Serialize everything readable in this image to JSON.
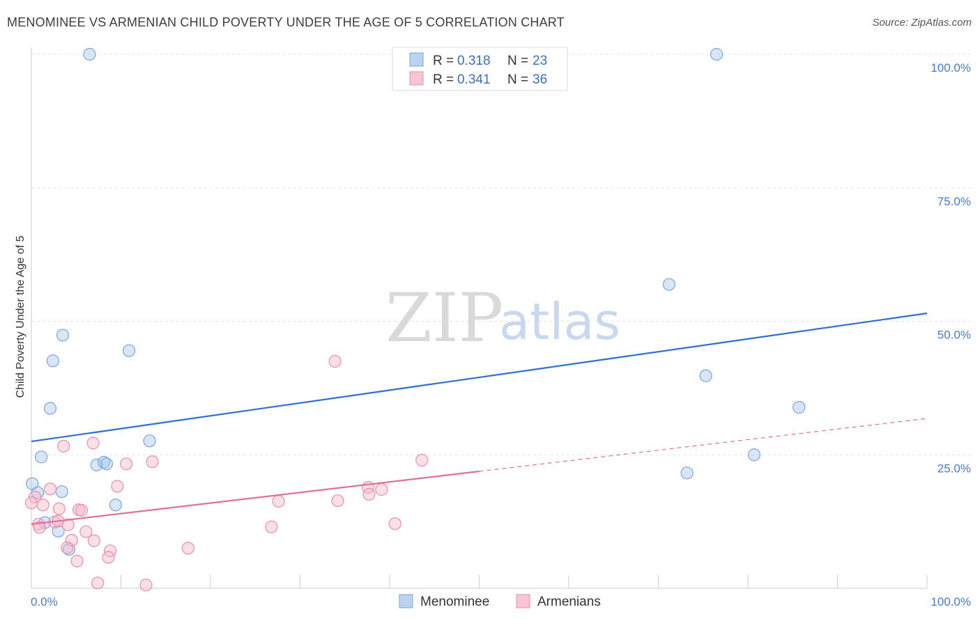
{
  "header": {
    "title": "MENOMINEE VS ARMENIAN CHILD POVERTY UNDER THE AGE OF 5 CORRELATION CHART",
    "source": "Source: ZipAtlas.com"
  },
  "watermark": {
    "zip": "ZIP",
    "atlas": "atlas"
  },
  "chart_data": {
    "type": "scatter",
    "ylabel": "Child Poverty Under the Age of 5",
    "xlim": [
      0,
      100
    ],
    "ylim": [
      0,
      100
    ],
    "x_ticks": [
      "0.0%",
      "100.0%"
    ],
    "y_ticks": [
      {
        "value": 100,
        "label": "100.0%"
      },
      {
        "value": 75,
        "label": "75.0%"
      },
      {
        "value": 50,
        "label": "50.0%"
      },
      {
        "value": 25,
        "label": "25.0%"
      }
    ],
    "grid": true,
    "legend_placement": "top-center",
    "series": [
      {
        "name": "Menominee",
        "color": "#a9c8ee",
        "stroke": "#7aa5dc",
        "line_color": "#2f6fcf",
        "R": "0.318",
        "N": "23",
        "trend": {
          "x0": 0,
          "y0": 27.5,
          "x1": 100,
          "y1": 51.5,
          "dashed_from": null
        },
        "points": [
          [
            6.5,
            100
          ],
          [
            76.5,
            100
          ],
          [
            71.2,
            56.9
          ],
          [
            3.5,
            47.4
          ],
          [
            2.4,
            42.6
          ],
          [
            10.9,
            44.5
          ],
          [
            75.3,
            39.8
          ],
          [
            2.1,
            33.7
          ],
          [
            85.7,
            33.9
          ],
          [
            13.2,
            27.6
          ],
          [
            1.1,
            24.6
          ],
          [
            80.7,
            25.0
          ],
          [
            7.3,
            23.1
          ],
          [
            8.1,
            23.6
          ],
          [
            8.4,
            23.3
          ],
          [
            73.2,
            21.6
          ],
          [
            0.1,
            19.6
          ],
          [
            0.7,
            17.9
          ],
          [
            3.4,
            18.1
          ],
          [
            9.4,
            15.6
          ],
          [
            1.5,
            12.3
          ],
          [
            3.0,
            10.7
          ],
          [
            4.2,
            7.3
          ]
        ]
      },
      {
        "name": "Armenians",
        "color": "#f5b7c9",
        "stroke": "#e88fa9",
        "line_color": "#e0709a",
        "R": "0.341",
        "N": "36",
        "trend": {
          "x0": 0,
          "y0": 12.0,
          "x1": 50,
          "y1": 21.9,
          "x2": 100,
          "y2": 31.8
        },
        "points": [
          [
            33.9,
            42.5
          ],
          [
            3.6,
            26.6
          ],
          [
            6.9,
            27.2
          ],
          [
            10.6,
            23.3
          ],
          [
            13.5,
            23.7
          ],
          [
            43.6,
            24.0
          ],
          [
            9.6,
            19.1
          ],
          [
            37.6,
            18.9
          ],
          [
            39.1,
            18.5
          ],
          [
            37.7,
            17.6
          ],
          [
            2.1,
            18.6
          ],
          [
            0.4,
            17.1
          ],
          [
            0.0,
            16.0
          ],
          [
            1.3,
            15.6
          ],
          [
            27.6,
            16.3
          ],
          [
            34.2,
            16.4
          ],
          [
            3.1,
            14.9
          ],
          [
            5.3,
            14.7
          ],
          [
            5.6,
            14.6
          ],
          [
            0.8,
            12.0
          ],
          [
            2.6,
            12.4
          ],
          [
            3.0,
            12.6
          ],
          [
            4.1,
            11.9
          ],
          [
            0.9,
            11.4
          ],
          [
            26.8,
            11.5
          ],
          [
            40.6,
            12.1
          ],
          [
            6.1,
            10.6
          ],
          [
            4.5,
            9.0
          ],
          [
            7.0,
            8.9
          ],
          [
            17.5,
            7.5
          ],
          [
            4.0,
            7.6
          ],
          [
            8.8,
            7.0
          ],
          [
            8.6,
            5.8
          ],
          [
            5.1,
            5.1
          ],
          [
            7.4,
            1.0
          ],
          [
            12.8,
            0.6
          ]
        ]
      }
    ]
  },
  "legend": {
    "r_label": "R =",
    "n_label": "N ="
  }
}
